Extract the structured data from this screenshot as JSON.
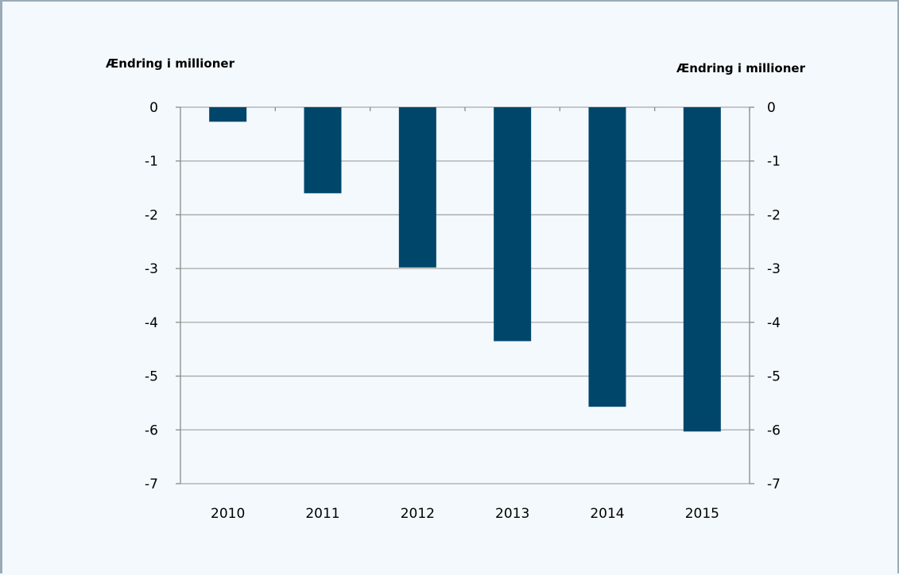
{
  "chart_data": {
    "type": "bar",
    "title": "",
    "ylabel_left": "Ændring  i millioner",
    "ylabel_right": "Ændring  i millioner",
    "categories": [
      "2010",
      "2011",
      "2012",
      "2013",
      "2014",
      "2015"
    ],
    "values": [
      -0.27,
      -1.6,
      -2.98,
      -4.35,
      -5.57,
      -6.03
    ],
    "ylim": [
      -7,
      0
    ],
    "yticks": [
      0,
      -1,
      -2,
      -3,
      -4,
      -5,
      -6,
      -7
    ],
    "grid": true,
    "legend": "none",
    "colors": {
      "bar": "#00466b",
      "grid": "#a8a8a8",
      "axis": "#8a8a8a",
      "background": "#f3f9fd",
      "frame": "#9aaab8"
    }
  }
}
